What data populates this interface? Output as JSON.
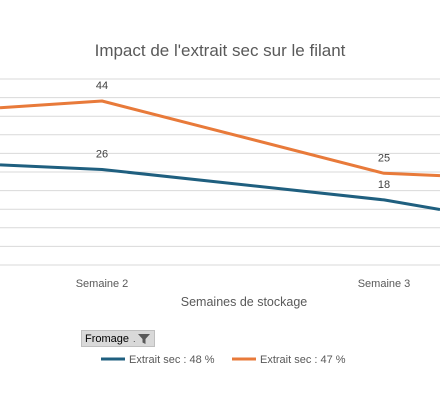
{
  "filter_button": {
    "label": "Fromage",
    "dots": ".",
    "icon": "filter-icon"
  },
  "colors": {
    "series1": "#1f5f7f",
    "series2": "#e87a3a",
    "grid": "#d9d9d9",
    "text": "#595959"
  },
  "chart_data": {
    "type": "line",
    "title": "Impact de l'extrait sec sur le filant",
    "xlabel": "Semaines de stockage",
    "ylabel": "",
    "categories": [
      "Semaine 2",
      "Semaine 3"
    ],
    "grid": true,
    "legend_position": "bottom",
    "series": [
      {
        "name": "Extrait sec : 48 %",
        "color": "#1f5f7f",
        "values": [
          26,
          18
        ],
        "labels": [
          "26",
          "18"
        ]
      },
      {
        "name": "Extrait sec : 47 %",
        "color": "#e87a3a",
        "values": [
          44,
          25
        ],
        "labels": [
          "44",
          "25"
        ]
      }
    ]
  }
}
